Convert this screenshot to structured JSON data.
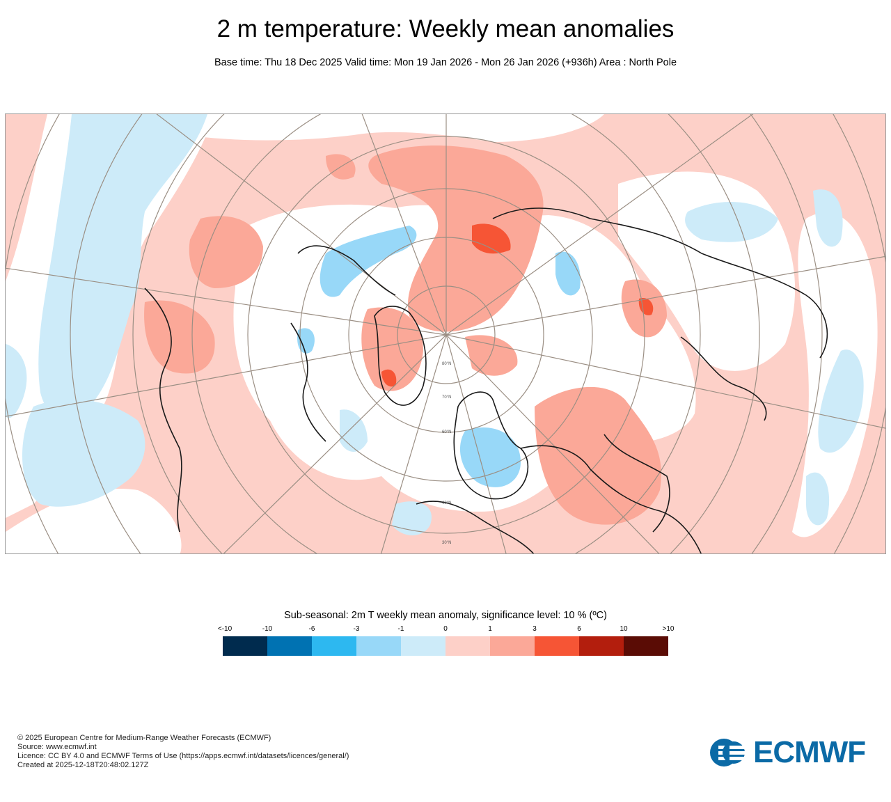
{
  "title": "2 m temperature: Weekly mean anomalies",
  "subtitle": "Base time: Thu 18 Dec 2025 Valid time: Mon 19 Jan 2026 - Mon 26 Jan 2026 (+936h) Area : North Pole",
  "map": {
    "projection": "polar stereographic",
    "area": "North Pole",
    "latitude_labels": [
      "80°N",
      "70°N",
      "60°N",
      "40°N",
      "30°N"
    ]
  },
  "legend": {
    "title": "Sub-seasonal: 2m T weekly mean anomaly, significance level: 10 % (ºC)",
    "ticks": [
      "<-10",
      "-10",
      "-6",
      "-3",
      "-1",
      "0",
      "1",
      "3",
      "6",
      "10",
      ">10"
    ],
    "colors": [
      "#002b4e",
      "#0072b2",
      "#2db8f0",
      "#98d8f8",
      "#cdebf9",
      "#fdd0c8",
      "#fba898",
      "#f65535",
      "#b31e0d",
      "#5a0c05"
    ]
  },
  "footer": {
    "copyright": "© 2025 European Centre for Medium-Range Weather Forecasts (ECMWF)",
    "source": "Source: www.ecmwf.int",
    "licence": "Licence: CC BY 4.0 and ECMWF Terms of Use (https://apps.ecmwf.int/datasets/licences/general/)",
    "created": "Created at 2025-12-18T20:48:02.127Z"
  },
  "logo": {
    "text": "ECMWF",
    "color": "#0b6aa6"
  }
}
